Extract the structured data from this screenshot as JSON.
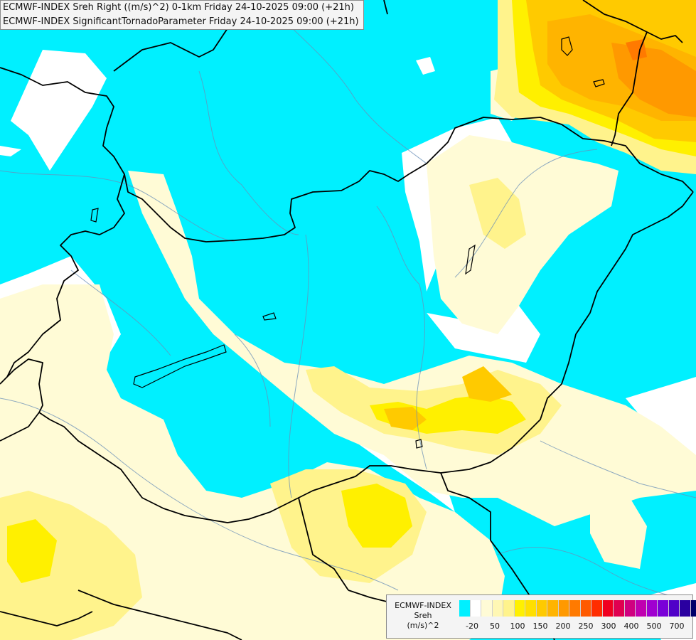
{
  "header": {
    "line1": "ECMWF-INDEX Sreh Right ((m/s)^2) 0-1km Friday 24-10-2025 09:00 (+21h)",
    "line2": "ECMWF-INDEX SignificantTornadoParameter Friday 24-10-2025 09:00 (+21h)"
  },
  "legend": {
    "title": "ECMWF-INDEX",
    "variable": "Sreh",
    "unit": "(m/s)^2",
    "colors": [
      "#00f0ff",
      "#ffffff",
      "#fffbd6",
      "#fff7b4",
      "#fff38c",
      "#fff000",
      "#ffdf00",
      "#ffca00",
      "#ffb400",
      "#ff9900",
      "#ff7a00",
      "#ff5a00",
      "#ff2d00",
      "#f00020",
      "#e00050",
      "#d00080",
      "#c000b0",
      "#a000d0",
      "#7a00d8",
      "#5000c8",
      "#2a00a0",
      "#00006a"
    ],
    "ticks": [
      "-20",
      "50",
      "100",
      "150",
      "200",
      "250",
      "300",
      "400",
      "500",
      "700"
    ]
  }
}
